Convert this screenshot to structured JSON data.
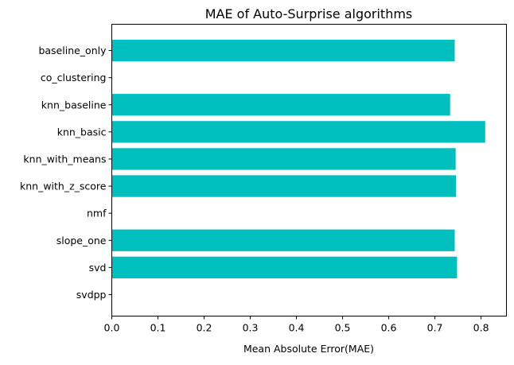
{
  "chart_data": {
    "type": "bar",
    "orientation": "horizontal",
    "title": "MAE of Auto-Surprise algorithms",
    "xlabel": "Mean Absolute Error(MAE)",
    "ylabel": "",
    "categories": [
      "baseline_only",
      "co_clustering",
      "knn_baseline",
      "knn_basic",
      "knn_with_means",
      "knn_with_z_score",
      "nmf",
      "slope_one",
      "svd",
      "svdpp"
    ],
    "values": [
      0.743,
      null,
      0.733,
      0.809,
      0.745,
      0.746,
      null,
      0.743,
      0.748,
      null
    ],
    "xlim": [
      0,
      0.855
    ],
    "xticks": [
      "0.0",
      "0.1",
      "0.2",
      "0.3",
      "0.4",
      "0.5",
      "0.6",
      "0.7",
      "0.8"
    ],
    "bar_color": "#00bfbf",
    "grid": false,
    "legend": "none"
  }
}
